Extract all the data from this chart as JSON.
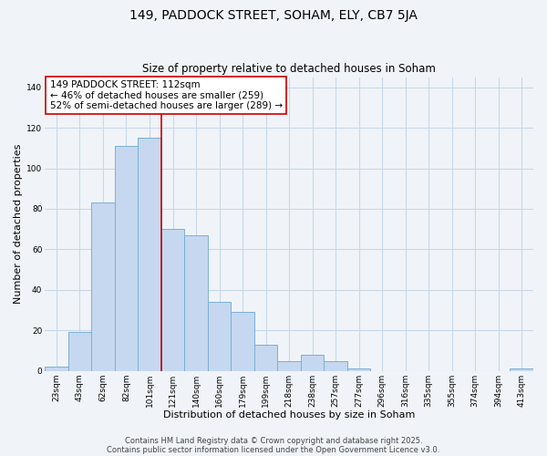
{
  "title": "149, PADDOCK STREET, SOHAM, ELY, CB7 5JA",
  "subtitle": "Size of property relative to detached houses in Soham",
  "xlabel": "Distribution of detached houses by size in Soham",
  "ylabel": "Number of detached properties",
  "bar_labels": [
    "23sqm",
    "43sqm",
    "62sqm",
    "82sqm",
    "101sqm",
    "121sqm",
    "140sqm",
    "160sqm",
    "179sqm",
    "199sqm",
    "218sqm",
    "238sqm",
    "257sqm",
    "277sqm",
    "296sqm",
    "316sqm",
    "335sqm",
    "355sqm",
    "374sqm",
    "394sqm",
    "413sqm"
  ],
  "bar_values": [
    2,
    19,
    83,
    111,
    115,
    70,
    67,
    34,
    29,
    13,
    5,
    8,
    5,
    1,
    0,
    0,
    0,
    0,
    0,
    0,
    1
  ],
  "bar_color": "#c5d8f0",
  "bar_edge_color": "#7bafd4",
  "vline_x_index": 5,
  "vline_color": "#cc0000",
  "annotation_text": "149 PADDOCK STREET: 112sqm\n← 46% of detached houses are smaller (259)\n52% of semi-detached houses are larger (289) →",
  "annotation_box_color": "white",
  "annotation_box_edge": "#cc0000",
  "ylim": [
    0,
    145
  ],
  "footnote1": "Contains HM Land Registry data © Crown copyright and database right 2025.",
  "footnote2": "Contains public sector information licensed under the Open Government Licence v3.0.",
  "background_color": "#f0f4f8",
  "grid_color": "#c8d8e8",
  "title_fontsize": 10,
  "subtitle_fontsize": 8.5,
  "axis_label_fontsize": 8,
  "tick_fontsize": 6.5,
  "annotation_fontsize": 7.5,
  "footnote_fontsize": 6
}
